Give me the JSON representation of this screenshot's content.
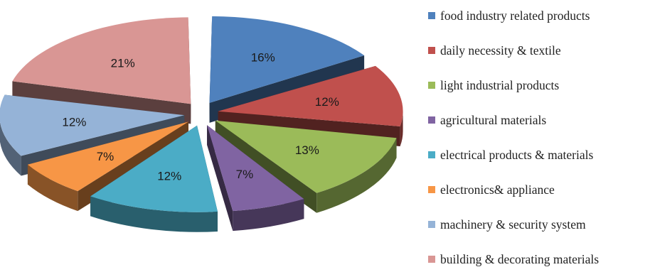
{
  "chart_data": {
    "type": "pie",
    "title": "",
    "style": "3d-exploded",
    "legend_position": "right",
    "slices": [
      {
        "label": "food industry related products",
        "value": 16,
        "display": "16%",
        "color": "#4F81BD"
      },
      {
        "label": "daily necessity & textile",
        "value": 12,
        "display": "12%",
        "color": "#C0504D"
      },
      {
        "label": "light industrial products",
        "value": 13,
        "display": "13%",
        "color": "#9BBB59"
      },
      {
        "label": "agricultural materials",
        "value": 7,
        "display": "7%",
        "color": "#8064A2"
      },
      {
        "label": "electrical products & materials",
        "value": 12,
        "display": "12%",
        "color": "#4BACC6"
      },
      {
        "label": "electronics& appliance",
        "value": 7,
        "display": "7%",
        "color": "#F79646"
      },
      {
        "label": "machinery & security system",
        "value": 12,
        "display": "12%",
        "color": "#95B3D7"
      },
      {
        "label": "building & decorating materials",
        "value": 21,
        "display": "21%",
        "color": "#D99694"
      }
    ]
  }
}
